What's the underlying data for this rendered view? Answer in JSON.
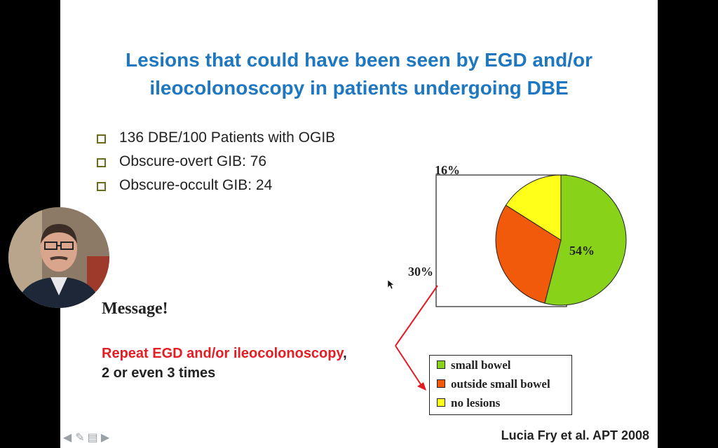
{
  "slide": {
    "title_lines": [
      "Lesions that could have been seen by EGD and/or",
      "ileocolonoscopy in patients undergoing DBE"
    ],
    "bullets": [
      "136 DBE/100 Patients with OGIB",
      "Obscure-overt GIB: 76",
      "Obscure-occult GIB: 24"
    ],
    "message_heading": "Message!",
    "repeat_red": "Repeat EGD and/or ileocolonoscopy",
    "repeat_comma": ",",
    "repeat_line2": "2 or even 3 times",
    "citation": "Lucia Fry et al. APT 2008"
  },
  "chart_data": {
    "type": "pie",
    "labels": [
      "small bowel",
      "outside small bowel",
      "no lesions"
    ],
    "values": [
      54,
      30,
      16
    ],
    "value_labels": [
      "54%",
      "30%",
      "16%"
    ],
    "colors": [
      "#88d21a",
      "#f05a0a",
      "#ffff1a"
    ],
    "legend_position": "bottom-right"
  },
  "colors": {
    "title": "#1f77c0",
    "accent_red": "#e21d24",
    "bullet_box": "#6b6b1e"
  },
  "nav_icons": [
    "arrow-left-icon",
    "pen-icon",
    "menu-icon",
    "arrow-right-icon"
  ]
}
